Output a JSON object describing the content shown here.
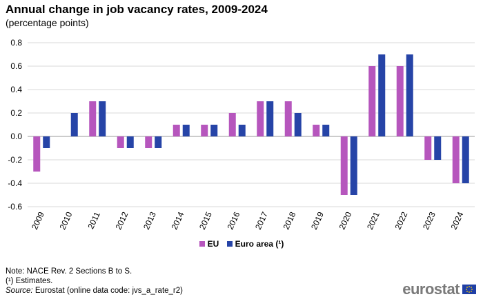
{
  "header": {
    "title": "Annual change in job vacancy rates, 2009-2024",
    "subtitle": "(percentage points)"
  },
  "legend": {
    "items": [
      {
        "label": "EU",
        "color": "#b656bd"
      },
      {
        "label": "Euro area (¹)",
        "color": "#2644a7"
      }
    ]
  },
  "notes": {
    "note": "Note: NACE Rev. 2 Sections B to S.",
    "footnote": "(¹) Estimates.",
    "source_label": "Source:",
    "source_text": " Eurostat (online data code: jvs_a_rate_r2)"
  },
  "logo": {
    "text": "eurostat",
    "icon": "eu-flag-icon"
  },
  "chart_data": {
    "type": "bar",
    "categories": [
      "2009",
      "2010",
      "2011",
      "2012",
      "2013",
      "2014",
      "2015",
      "2016",
      "2017",
      "2018",
      "2019",
      "2020",
      "2021",
      "2022",
      "2023",
      "2024"
    ],
    "series": [
      {
        "name": "EU",
        "color": "#b656bd",
        "values": [
          -0.3,
          0.0,
          0.3,
          -0.1,
          -0.1,
          0.1,
          0.1,
          0.2,
          0.3,
          0.3,
          0.1,
          -0.5,
          0.6,
          0.6,
          -0.2,
          -0.4
        ]
      },
      {
        "name": "Euro area (¹)",
        "color": "#2644a7",
        "values": [
          -0.1,
          0.2,
          0.3,
          -0.1,
          -0.1,
          0.1,
          0.1,
          0.1,
          0.3,
          0.2,
          0.1,
          -0.5,
          0.7,
          0.7,
          -0.2,
          -0.4
        ]
      }
    ],
    "yticks": [
      "0.8",
      "0.6",
      "0.4",
      "0.2",
      "0.0",
      "-0.2",
      "-0.4",
      "-0.6"
    ],
    "ylim": [
      -0.6,
      0.8
    ],
    "grid": true,
    "legend_position": "bottom"
  }
}
